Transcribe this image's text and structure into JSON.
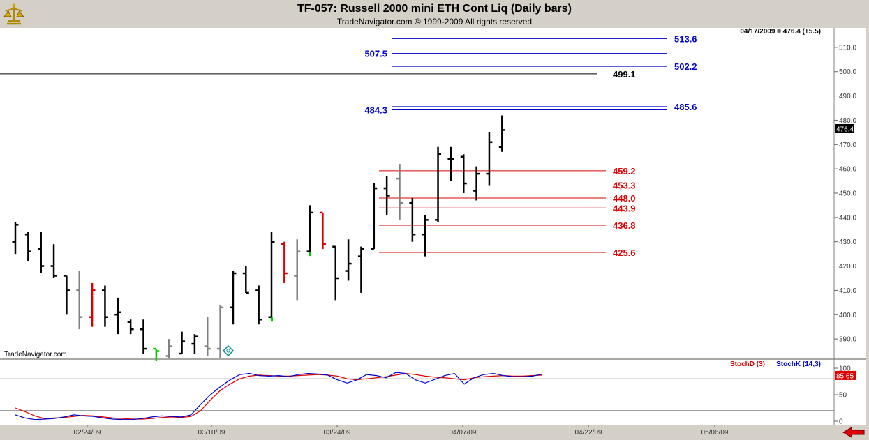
{
  "header": {
    "title": "TF-057:  Russell 2000 mini ETH Cont Liq  (Daily bars)",
    "copyright": "TradeNavigator.com © 1999-2009 All rights reserved"
  },
  "quote_label": "04/17/2009 = 476.4 (+5.5)",
  "watermark": "TradeNavigator.com",
  "current_price_label": "476.4",
  "colors": {
    "blue": "#0000cc",
    "red": "#dd0000",
    "black": "#000000",
    "gray": "#808080",
    "green": "#00cc00"
  },
  "chart_data": [
    {
      "type": "ohlc",
      "title": "TF-057:  Russell 2000 mini ETH Cont Liq  (Daily bars)",
      "ylim": [
        382,
        518
      ],
      "y_ticks": [
        "390.0",
        "400.0",
        "410.0",
        "420.0",
        "430.0",
        "440.0",
        "450.0",
        "460.0",
        "470.0",
        "480.0",
        "490.0",
        "500.0",
        "510.0"
      ],
      "x_ticks": [
        "02/24/09",
        "03/10/09",
        "03/24/09",
        "04/07/09",
        "04/22/09",
        "05/06/09"
      ],
      "bars": [
        {
          "o": 430,
          "h": 438,
          "l": 425,
          "c": 437,
          "color": "black"
        },
        {
          "o": 433,
          "h": 434,
          "l": 422,
          "c": 426,
          "color": "black"
        },
        {
          "o": 427,
          "h": 434,
          "l": 417,
          "c": 420,
          "color": "black"
        },
        {
          "o": 420,
          "h": 429,
          "l": 415,
          "c": 416,
          "color": "black"
        },
        {
          "o": 416,
          "h": 416,
          "l": 400,
          "c": 410,
          "color": "black"
        },
        {
          "o": 410,
          "h": 418,
          "l": 394,
          "c": 399,
          "color": "gray"
        },
        {
          "o": 399,
          "h": 413,
          "l": 395,
          "c": 410,
          "color": "red"
        },
        {
          "o": 410,
          "h": 412,
          "l": 395,
          "c": 399,
          "color": "black"
        },
        {
          "o": 400,
          "h": 407,
          "l": 392,
          "c": 401,
          "color": "black"
        },
        {
          "o": 397,
          "h": 398,
          "l": 392,
          "c": 394,
          "color": "black"
        },
        {
          "o": 394,
          "h": 398,
          "l": 384,
          "c": 386,
          "color": "black"
        },
        {
          "o": 386,
          "h": 386,
          "l": 381,
          "c": 385,
          "color": "green"
        },
        {
          "o": 383,
          "h": 390,
          "l": 382,
          "c": 387,
          "color": "gray"
        },
        {
          "o": 384,
          "h": 393,
          "l": 384,
          "c": 389,
          "color": "black"
        },
        {
          "o": 388,
          "h": 392,
          "l": 384,
          "c": 391,
          "color": "black"
        },
        {
          "o": 387,
          "h": 399,
          "l": 383,
          "c": 386,
          "color": "gray"
        },
        {
          "o": 386,
          "h": 404,
          "l": 382,
          "c": 403,
          "color": "gray"
        },
        {
          "o": 403,
          "h": 418,
          "l": 396,
          "c": 417,
          "color": "black"
        },
        {
          "o": 417,
          "h": 420,
          "l": 409,
          "c": 409,
          "color": "black"
        },
        {
          "o": 410,
          "h": 412,
          "l": 396,
          "c": 398,
          "color": "black"
        },
        {
          "o": 399,
          "h": 434,
          "l": 398,
          "c": 430,
          "color": "black"
        },
        {
          "o": 429,
          "h": 430,
          "l": 413,
          "c": 417,
          "color": "red"
        },
        {
          "o": 416,
          "h": 431,
          "l": 406,
          "c": 426,
          "color": "gray"
        },
        {
          "o": 426,
          "h": 445,
          "l": 425,
          "c": 442,
          "color": "black"
        },
        {
          "o": 442,
          "h": 442,
          "l": 427,
          "c": 429,
          "color": "red"
        },
        {
          "o": 428,
          "h": 428,
          "l": 406,
          "c": 415,
          "color": "black"
        },
        {
          "o": 418,
          "h": 431,
          "l": 414,
          "c": 421,
          "color": "black"
        },
        {
          "o": 424,
          "h": 428,
          "l": 409,
          "c": 427,
          "color": "black"
        },
        {
          "o": 427,
          "h": 454,
          "l": 427,
          "c": 452,
          "color": "black"
        },
        {
          "o": 452,
          "h": 457,
          "l": 441,
          "c": 449,
          "color": "black"
        },
        {
          "o": 456,
          "h": 462,
          "l": 439,
          "c": 446,
          "color": "gray"
        },
        {
          "o": 446,
          "h": 448,
          "l": 430,
          "c": 433,
          "color": "black"
        },
        {
          "o": 433,
          "h": 441,
          "l": 424,
          "c": 439,
          "color": "black"
        },
        {
          "o": 439,
          "h": 469,
          "l": 438,
          "c": 466,
          "color": "black"
        },
        {
          "o": 464,
          "h": 469,
          "l": 455,
          "c": 464,
          "color": "black"
        },
        {
          "o": 465,
          "h": 466,
          "l": 450,
          "c": 454,
          "color": "black"
        },
        {
          "o": 451,
          "h": 461,
          "l": 447,
          "c": 458,
          "color": "black"
        },
        {
          "o": 458,
          "h": 475,
          "l": 453,
          "c": 471,
          "color": "black"
        },
        {
          "o": 469,
          "h": 482,
          "l": 467,
          "c": 476,
          "color": "black"
        }
      ],
      "levels": [
        {
          "value": 513.6,
          "label": "513.6",
          "color": "blue",
          "span": "right"
        },
        {
          "value": 507.5,
          "label": "507.5",
          "color": "blue",
          "span": "left"
        },
        {
          "value": 502.2,
          "label": "502.2",
          "color": "blue",
          "span": "right"
        },
        {
          "value": 499.1,
          "label": "499.1",
          "color": "black",
          "span": "full"
        },
        {
          "value": 485.6,
          "label": "485.6",
          "color": "blue",
          "span": "right"
        },
        {
          "value": 484.3,
          "label": "484.3",
          "color": "blue",
          "span": "left"
        },
        {
          "value": 459.2,
          "label": "459.2",
          "color": "red",
          "span": "red"
        },
        {
          "value": 453.3,
          "label": "453.3",
          "color": "red",
          "span": "red"
        },
        {
          "value": 448.0,
          "label": "448.0",
          "color": "red",
          "span": "red"
        },
        {
          "value": 443.9,
          "label": "443.9",
          "color": "red",
          "span": "red"
        },
        {
          "value": 436.8,
          "label": "436.8",
          "color": "red",
          "span": "red"
        },
        {
          "value": 425.6,
          "label": "425.6",
          "color": "red",
          "span": "red"
        }
      ]
    },
    {
      "type": "line",
      "ylim": [
        0,
        100
      ],
      "y_ticks": [
        "0",
        "50",
        "100"
      ],
      "reference_lines": [
        20,
        80
      ],
      "current_value_label": "85.65",
      "series": [
        {
          "name": "StochD (3)",
          "color": "red",
          "values": [
            25,
            18,
            10,
            5,
            6,
            7,
            9,
            11,
            10,
            8,
            6,
            5,
            4,
            4,
            5,
            7,
            8,
            7,
            9,
            20,
            40,
            58,
            70,
            80,
            85,
            87,
            86,
            85,
            85,
            86,
            87,
            88,
            87,
            85,
            80,
            78,
            80,
            82,
            84,
            87,
            90,
            88,
            85,
            83,
            82,
            80,
            78,
            82,
            84,
            85,
            86,
            85,
            85,
            86,
            87
          ]
        },
        {
          "name": "StochK (14,3)",
          "color": "blue",
          "values": [
            12,
            6,
            3,
            4,
            5,
            8,
            12,
            10,
            9,
            6,
            4,
            3,
            3,
            5,
            8,
            10,
            9,
            8,
            12,
            32,
            50,
            65,
            78,
            88,
            90,
            86,
            85,
            86,
            84,
            88,
            90,
            89,
            87,
            78,
            72,
            78,
            88,
            86,
            82,
            92,
            90,
            78,
            72,
            79,
            86,
            90,
            70,
            82,
            88,
            90,
            86,
            84,
            84,
            85,
            89
          ]
        }
      ]
    }
  ]
}
